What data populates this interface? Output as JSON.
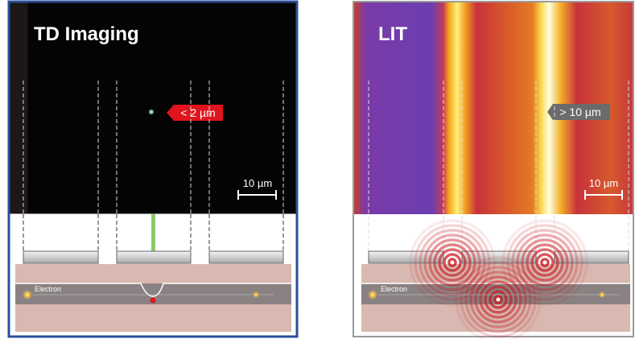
{
  "panels": [
    {
      "title": "TD Imaging",
      "annotation": "< 2 µm",
      "scale_label": "10 µm",
      "particle_label": "Electron"
    },
    {
      "title": "LIT",
      "annotation": "> 10 µm",
      "scale_label": "10 µm",
      "particle_label": "Electron"
    }
  ]
}
